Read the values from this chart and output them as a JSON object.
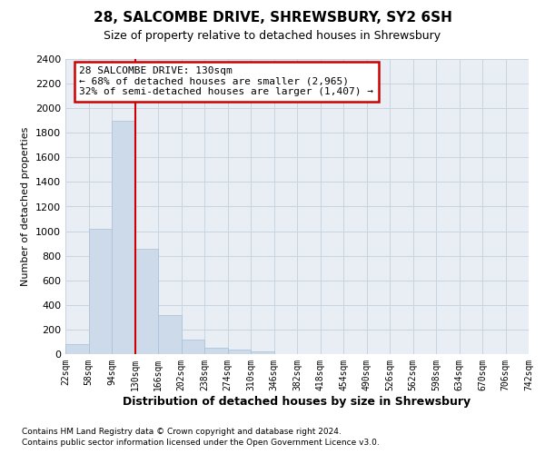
{
  "title": "28, SALCOMBE DRIVE, SHREWSBURY, SY2 6SH",
  "subtitle": "Size of property relative to detached houses in Shrewsbury",
  "xlabel": "Distribution of detached houses by size in Shrewsbury",
  "ylabel": "Number of detached properties",
  "footnote1": "Contains HM Land Registry data © Crown copyright and database right 2024.",
  "footnote2": "Contains public sector information licensed under the Open Government Licence v3.0.",
  "bin_labels": [
    "22sqm",
    "58sqm",
    "94sqm",
    "130sqm",
    "166sqm",
    "202sqm",
    "238sqm",
    "274sqm",
    "310sqm",
    "346sqm",
    "382sqm",
    "418sqm",
    "454sqm",
    "490sqm",
    "526sqm",
    "562sqm",
    "598sqm",
    "634sqm",
    "670sqm",
    "706sqm",
    "742sqm"
  ],
  "bar_values": [
    80,
    1020,
    1900,
    860,
    320,
    115,
    50,
    35,
    20,
    0,
    0,
    0,
    0,
    0,
    0,
    0,
    0,
    0,
    0,
    0
  ],
  "bar_color": "#ccdaea",
  "bar_edge_color": "#a8c0d8",
  "vline_color": "#cc0000",
  "vline_index": 3,
  "annotation_line1": "28 SALCOMBE DRIVE: 130sqm",
  "annotation_line2": "← 68% of detached houses are smaller (2,965)",
  "annotation_line3": "32% of semi-detached houses are larger (1,407) →",
  "annotation_box_edgecolor": "#cc0000",
  "ylim": [
    0,
    2400
  ],
  "yticks": [
    0,
    200,
    400,
    600,
    800,
    1000,
    1200,
    1400,
    1600,
    1800,
    2000,
    2200,
    2400
  ],
  "grid_color": "#c8d4e0",
  "background_color": "#e8eef4",
  "fig_background": "#ffffff",
  "title_fontsize": 11,
  "subtitle_fontsize": 9,
  "ylabel_fontsize": 8,
  "xlabel_fontsize": 9,
  "ytick_fontsize": 8,
  "xtick_fontsize": 7,
  "footnote_fontsize": 6.5
}
